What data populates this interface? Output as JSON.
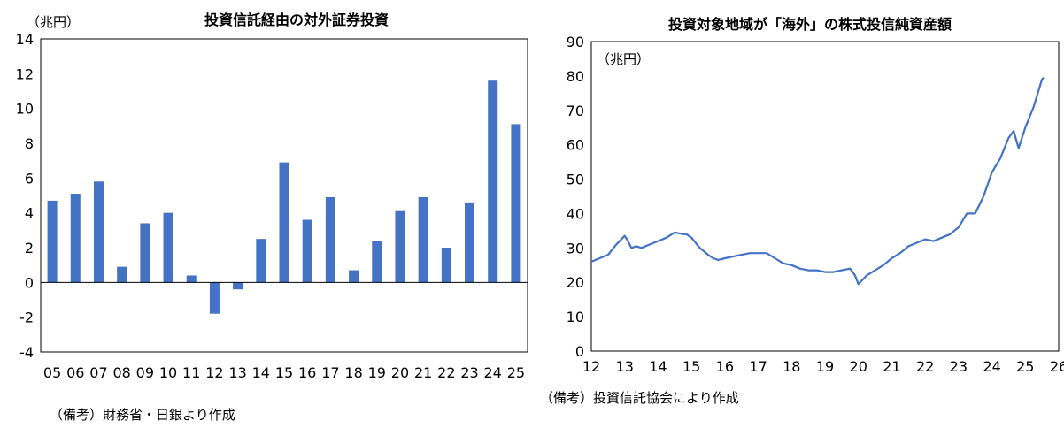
{
  "left": {
    "title": "投資信託経由の対外証券投資",
    "unit": "（兆円）",
    "note": "（備考）財務省・日銀より作成"
  },
  "right": {
    "title": "投資対象地域が「海外」の株式投信純資産額",
    "unit": "（兆円）",
    "note": "（備考）投資信託協会により作成"
  },
  "colors": {
    "series": "#4472C4",
    "axis": "#000000"
  },
  "chart_data": [
    {
      "type": "bar",
      "title": "投資信託経由の対外証券投資",
      "ylabel": "（兆円）",
      "categories": [
        "05",
        "06",
        "07",
        "08",
        "09",
        "10",
        "11",
        "12",
        "13",
        "14",
        "15",
        "16",
        "17",
        "18",
        "19",
        "20",
        "21",
        "22",
        "23",
        "24",
        "25"
      ],
      "values": [
        4.7,
        5.1,
        5.8,
        0.9,
        3.4,
        4.0,
        0.4,
        -1.8,
        -0.4,
        2.5,
        6.9,
        3.6,
        4.9,
        0.7,
        2.4,
        4.1,
        4.9,
        2.0,
        4.6,
        11.6,
        9.1
      ],
      "ylim": [
        -4,
        14
      ],
      "yticks": [
        "-4",
        "-2",
        "0",
        "2",
        "4",
        "6",
        "8",
        "10",
        "12",
        "14"
      ],
      "grid": false,
      "legend": "none"
    },
    {
      "type": "line",
      "title": "投資対象地域が「海外」の株式投信純資産額",
      "ylabel": "（兆円）",
      "xticks": [
        "12",
        "13",
        "14",
        "15",
        "16",
        "17",
        "18",
        "19",
        "20",
        "21",
        "22",
        "23",
        "24",
        "25",
        "26"
      ],
      "xlim": [
        2012,
        2026
      ],
      "ylim": [
        0,
        90
      ],
      "yticks": [
        "0",
        "10",
        "20",
        "30",
        "40",
        "50",
        "60",
        "70",
        "80",
        "90"
      ],
      "grid": false,
      "legend": "none",
      "series": [
        {
          "x": [
            2012.0,
            2012.25,
            2012.5,
            2012.75,
            2013.0,
            2013.1,
            2013.2,
            2013.35,
            2013.5,
            2013.75,
            2014.0,
            2014.25,
            2014.5,
            2014.75,
            2014.85,
            2015.0,
            2015.25,
            2015.5,
            2015.65,
            2015.8,
            2016.0,
            2016.25,
            2016.5,
            2016.75,
            2017.0,
            2017.25,
            2017.5,
            2017.75,
            2018.0,
            2018.25,
            2018.5,
            2018.75,
            2019.0,
            2019.25,
            2019.5,
            2019.75,
            2019.9,
            2020.0,
            2020.25,
            2020.5,
            2020.75,
            2021.0,
            2021.25,
            2021.5,
            2021.75,
            2022.0,
            2022.25,
            2022.5,
            2022.75,
            2023.0,
            2023.25,
            2023.5,
            2023.75,
            2024.0,
            2024.25,
            2024.5,
            2024.65,
            2024.8,
            2025.0,
            2025.25,
            2025.5,
            2025.55
          ],
          "values": [
            26,
            27,
            28,
            31,
            33.5,
            32,
            30,
            30.5,
            30,
            31,
            32,
            33,
            34.5,
            34,
            34,
            33,
            30,
            28,
            27,
            26.5,
            27,
            27.5,
            28,
            28.5,
            28.5,
            28.5,
            27,
            25.5,
            25,
            24,
            23.5,
            23.5,
            23,
            23,
            23.5,
            24,
            22,
            19.5,
            22,
            23.5,
            25,
            27,
            28.5,
            30.5,
            31.5,
            32.5,
            32,
            33,
            34,
            36,
            40,
            40,
            45,
            52,
            56,
            62,
            64,
            59,
            65,
            71,
            79,
            79.5
          ]
        }
      ]
    }
  ]
}
